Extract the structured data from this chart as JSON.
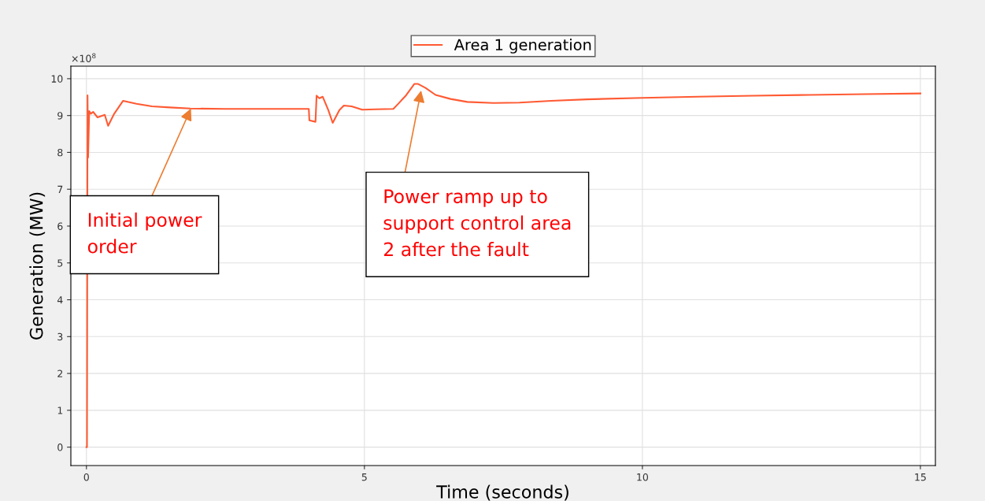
{
  "chart_data": {
    "type": "line",
    "xlabel": "Time (seconds)",
    "ylabel": "Generation (MW)",
    "xlim": [
      -0.28,
      15.27
    ],
    "ylim": [
      -0.5,
      10.34
    ],
    "xticks": [
      0,
      5,
      10,
      15
    ],
    "yticks": [
      0,
      1,
      2,
      3,
      4,
      5,
      6,
      7,
      8,
      9,
      10
    ],
    "grid": true,
    "legend": "top",
    "marker": "none",
    "line_style": "solid",
    "series": [
      {
        "name": "Area 1 generation",
        "color": "#ff5a33",
        "x": [
          0.0,
          0.01,
          0.02,
          0.03,
          0.05,
          0.08,
          0.12,
          0.2,
          0.33,
          0.39,
          0.5,
          0.66,
          0.9,
          1.18,
          1.5,
          1.87,
          2.5,
          3.0,
          3.5,
          4.0,
          4.01,
          4.12,
          4.14,
          4.19,
          4.25,
          4.35,
          4.43,
          4.55,
          4.63,
          4.77,
          4.96,
          5.2,
          5.52,
          5.59,
          5.75,
          5.9,
          5.96,
          6.1,
          6.28,
          6.55,
          6.85,
          7.32,
          7.79,
          8.36,
          9.0,
          10.0,
          11.0,
          12.0,
          13.0,
          14.0,
          15.0
        ],
        "values": [
          0.0,
          0.0,
          9.55,
          7.86,
          9.12,
          9.05,
          9.1,
          8.95,
          9.02,
          8.72,
          9.05,
          9.4,
          9.32,
          9.25,
          9.22,
          9.19,
          9.18,
          9.18,
          9.18,
          9.18,
          8.87,
          8.83,
          9.54,
          9.47,
          9.51,
          9.15,
          8.8,
          9.15,
          9.27,
          9.25,
          9.16,
          9.17,
          9.18,
          9.29,
          9.55,
          9.86,
          9.86,
          9.75,
          9.56,
          9.45,
          9.37,
          9.34,
          9.35,
          9.4,
          9.44,
          9.48,
          9.51,
          9.54,
          9.56,
          9.58,
          9.6
        ]
      }
    ],
    "annotations": [
      {
        "text": "Initial power\norder",
        "x": 1.88,
        "y": 9.19
      },
      {
        "text": "Power ramp up to\nsupport control area\n2 after the fault",
        "x": 6.02,
        "y": 9.68
      },
      "×10$^{8}$"
    ]
  }
}
